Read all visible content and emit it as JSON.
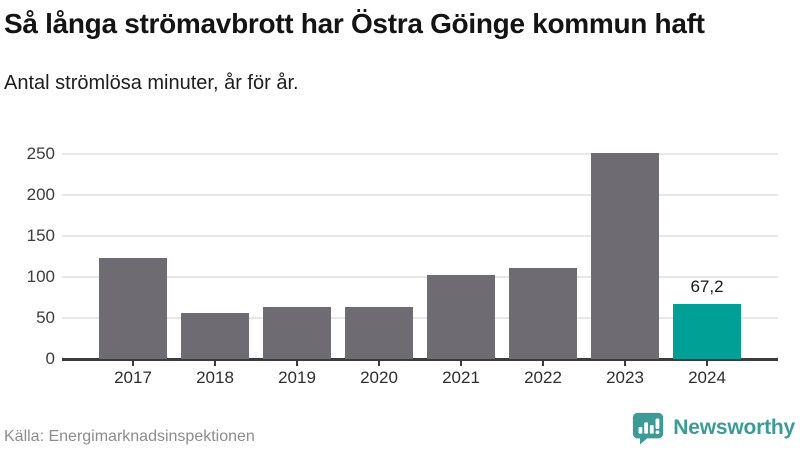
{
  "chart_data": {
    "type": "bar",
    "title": "Så långa strömavbrott har Östra Göinge kommun haft",
    "subtitle": "Antal strömlösa minuter, år för år.",
    "categories": [
      "2017",
      "2018",
      "2019",
      "2020",
      "2021",
      "2022",
      "2023",
      "2024"
    ],
    "values": [
      123,
      56,
      63,
      63,
      102,
      111,
      251,
      67.2
    ],
    "highlight_index": 7,
    "highlight_label": "67,2",
    "xlabel": "",
    "ylabel": "",
    "ylim": [
      0,
      250
    ],
    "yticks": [
      0,
      50,
      100,
      150,
      200,
      250
    ],
    "grid": true,
    "legend_position": "none",
    "colors": {
      "bar": "#6E6B73",
      "highlight": "#00A096",
      "axis": "#3B3B3B",
      "gridline": "#E7E7E7"
    }
  },
  "footer": {
    "source": "Källa: Energimarknadsinspektionen",
    "brand": "Newsworthy",
    "brand_color": "#3D9B97"
  }
}
